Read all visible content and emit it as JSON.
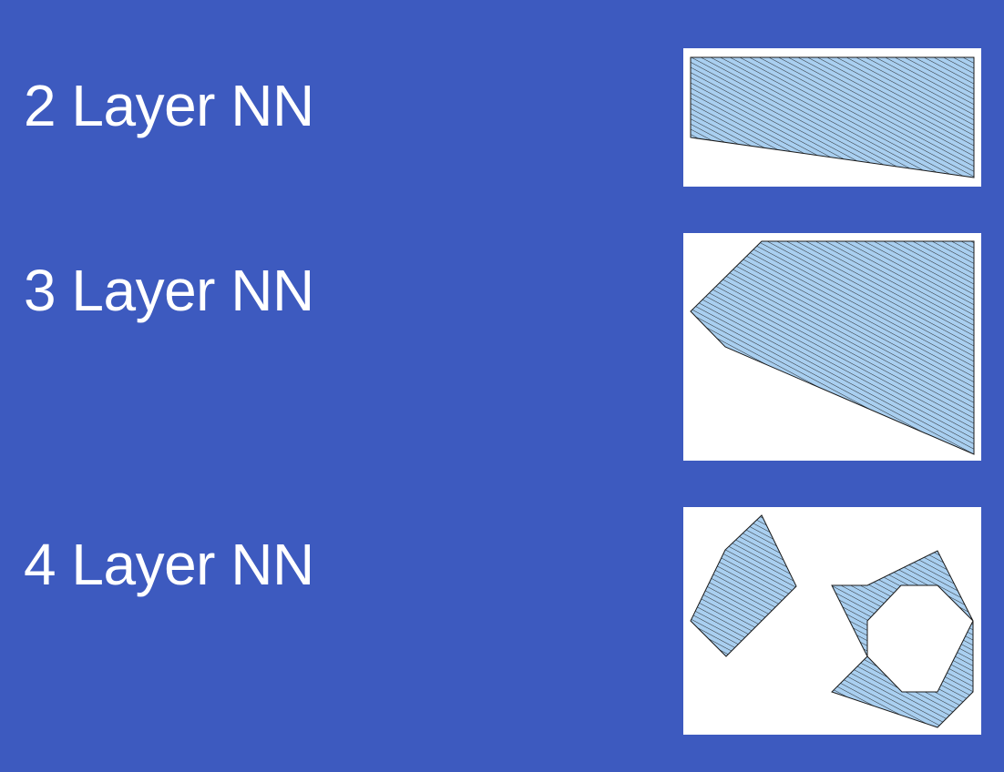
{
  "rows": [
    {
      "id": "two-layer",
      "label": "2 Layer NN"
    },
    {
      "id": "three-layer",
      "label": "3 Layer NN"
    },
    {
      "id": "four-layer",
      "label": "4 Layer NN"
    }
  ],
  "colors": {
    "background": "#3d5abf",
    "label_text": "#ffffff",
    "panel": "#ffffff",
    "region_fill": "#a9cff0",
    "hatch_line": "#1a1a1a",
    "outline": "#1a1a1a"
  }
}
